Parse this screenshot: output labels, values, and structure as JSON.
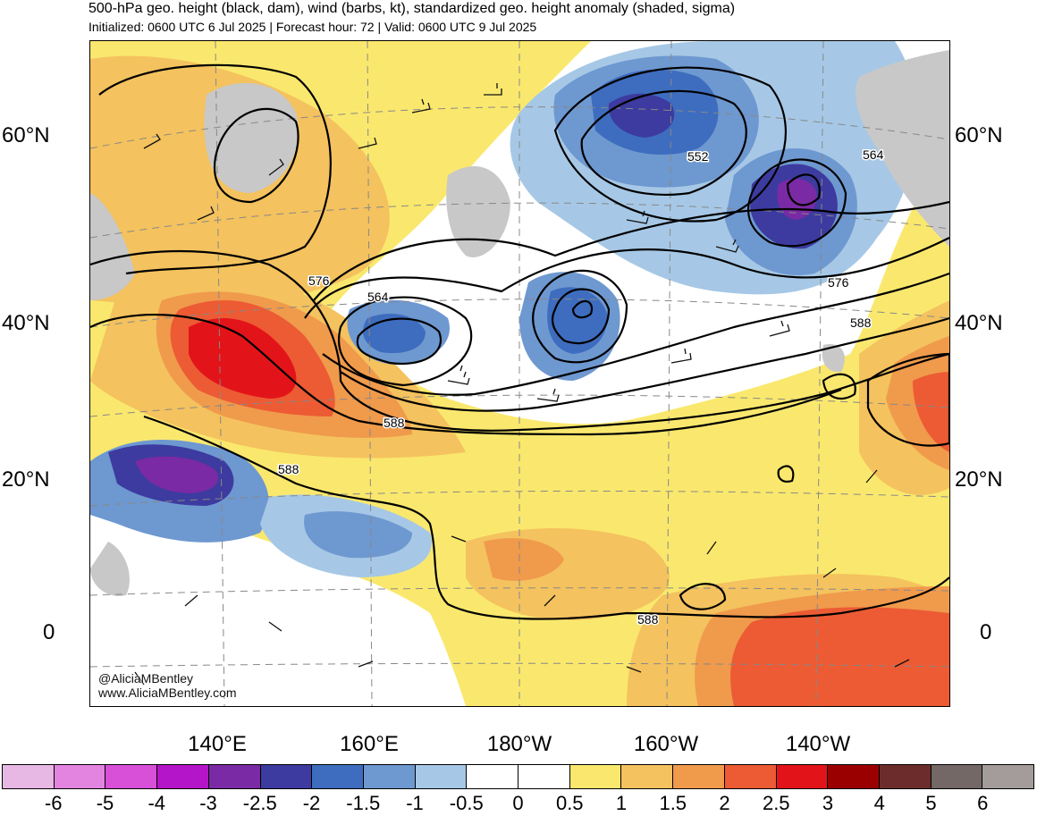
{
  "title": "500-hPa geo. height (black, dam), wind (barbs, kt), standardized geo. height anomaly (shaded, sigma)",
  "subtitle": "Initialized: 0600 UTC 6 Jul 2025 | Forecast hour: 72 | Valid: 0600 UTC 9 Jul 2025",
  "lat_labels": [
    "60°N",
    "40°N",
    "20°N",
    "0"
  ],
  "lon_labels": [
    "140°E",
    "160°E",
    "180°W",
    "160°W",
    "140°W"
  ],
  "contour_labels": [
    "552",
    "564",
    "564",
    "576",
    "576",
    "588",
    "588",
    "588",
    "588"
  ],
  "credit": {
    "handle": "@AliciaMBentley",
    "site": "www.AliciaMBentley.com"
  },
  "colorbar": {
    "ticks": [
      "-6",
      "-5",
      "-4",
      "-3",
      "-2.5",
      "-2",
      "-1.5",
      "-1",
      "-0.5",
      "0",
      "0.5",
      "1",
      "1.5",
      "2",
      "2.5",
      "3",
      "4",
      "5",
      "6"
    ],
    "colors": [
      "#e8b8e4",
      "#e384e1",
      "#d850d8",
      "#b515c8",
      "#7a2aa4",
      "#3d3b9f",
      "#3e6dbf",
      "#6e98d0",
      "#a6c8e6",
      "#ffffff",
      "#ffffff",
      "#fae86e",
      "#f4c25e",
      "#f09a4c",
      "#ec5b34",
      "#e31419",
      "#9b0000",
      "#6d2c2c",
      "#736866",
      "#a39c9a"
    ]
  },
  "colors": {
    "land": "#c8c8c8",
    "contour": "#000000",
    "grid": "#888888"
  }
}
